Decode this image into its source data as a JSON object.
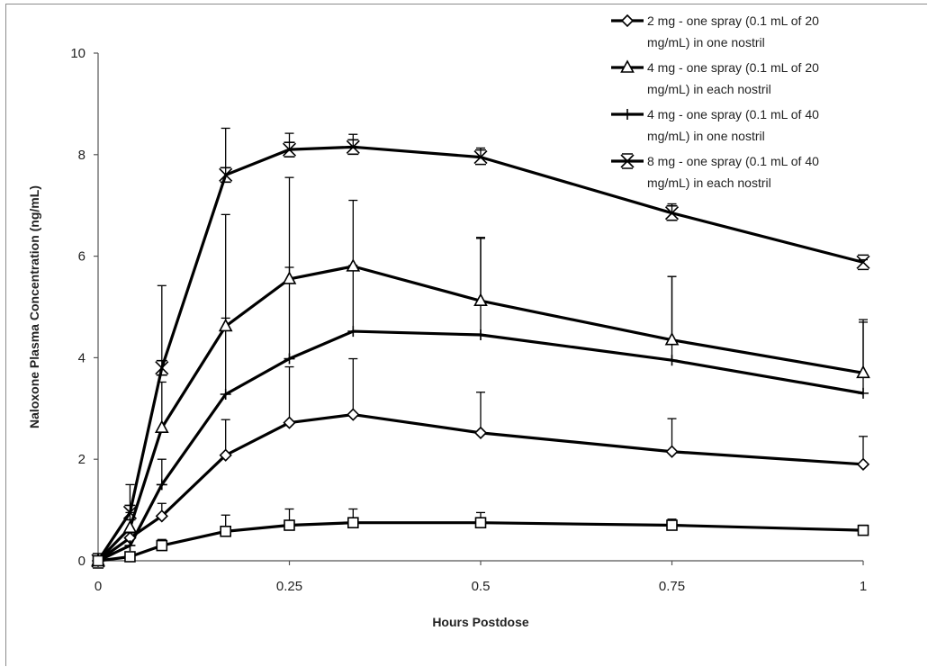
{
  "chart_data": {
    "type": "line",
    "xlabel": "Hours Postdose",
    "ylabel": "Naloxone Plasma Concentration (ng/mL)",
    "xlim": [
      0,
      1
    ],
    "ylim": [
      0,
      10
    ],
    "xticks": [
      "0",
      "0.25",
      "0.5",
      "0.75",
      "1"
    ],
    "yticks": [
      "0",
      "2",
      "4",
      "6",
      "8",
      "10"
    ],
    "grid": false,
    "legend_position": "top-right",
    "x": [
      0,
      0.0417,
      0.0833,
      0.1667,
      0.25,
      0.3333,
      0.5,
      0.75,
      1.0
    ],
    "series": [
      {
        "name": "2 mg - one spray (0.1 mL of 20 mg/mL) in one nostril",
        "legend_lines": [
          "2 mg - one spray (0.1 mL of 20",
          "mg/mL) in one nostril"
        ],
        "marker": "diamond",
        "values": [
          0,
          0.45,
          0.88,
          2.08,
          2.72,
          2.88,
          2.52,
          2.15,
          1.9
        ],
        "errors": [
          0,
          0.1,
          0.25,
          0.7,
          1.1,
          1.1,
          0.8,
          0.65,
          0.55
        ]
      },
      {
        "name": "4 mg - one spray (0.1 mL of 20 mg/mL) in each nostril",
        "legend_lines": [
          "4 mg - one spray (0.1 mL of 20",
          "mg/mL) in each nostril"
        ],
        "marker": "triangle",
        "values": [
          0,
          0.65,
          2.62,
          4.62,
          5.55,
          5.8,
          5.12,
          4.35,
          3.7
        ],
        "errors": [
          0,
          0.3,
          0.9,
          2.2,
          2.0,
          1.3,
          1.25,
          1.25,
          1.0
        ]
      },
      {
        "name": "4 mg - one spray (0.1 mL of 40 mg/mL) in one nostril",
        "legend_lines": [
          "4 mg - one spray (0.1 mL of 40",
          "mg/mL) in one nostril"
        ],
        "marker": "plus",
        "values": [
          0,
          0.3,
          1.5,
          3.28,
          3.98,
          4.52,
          4.45,
          3.95,
          3.3
        ],
        "errors": [
          0,
          0.15,
          0.5,
          1.5,
          1.8,
          1.3,
          1.9,
          1.65,
          1.45
        ]
      },
      {
        "name": "8 mg - one spray (0.1 mL of 40 mg/mL) in each nostril",
        "legend_lines": [
          "8 mg - one spray (0.1 mL of 40",
          "mg/mL) in each nostril"
        ],
        "marker": "asterisk",
        "values": [
          0,
          0.95,
          3.8,
          7.6,
          8.1,
          8.15,
          7.95,
          6.85,
          5.88
        ],
        "errors": [
          0,
          0.55,
          1.62,
          0.92,
          0.32,
          0.25,
          0.18,
          0.18,
          0.05
        ]
      },
      {
        "marker": "square",
        "values": [
          0,
          0.08,
          0.3,
          0.58,
          0.7,
          0.75,
          0.75,
          0.7,
          0.6
        ],
        "errors": [
          0,
          0.05,
          0.12,
          0.32,
          0.32,
          0.27,
          0.2,
          0.12,
          0.1
        ]
      }
    ]
  }
}
